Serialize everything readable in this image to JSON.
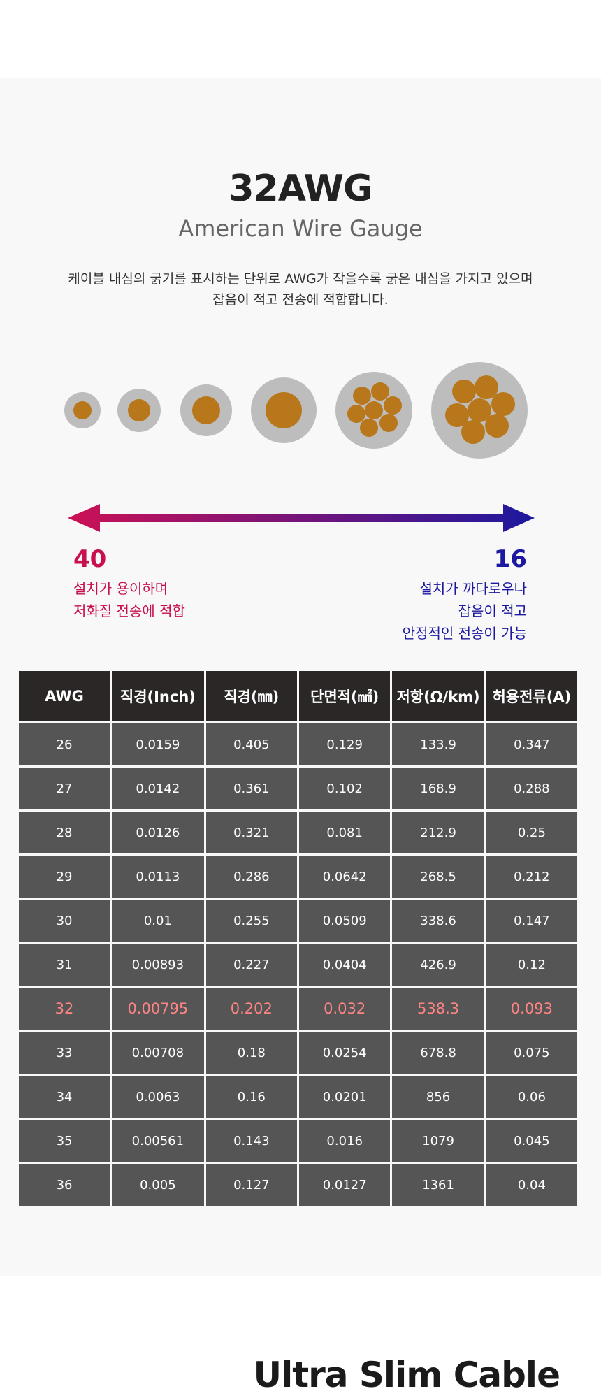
{
  "header": {
    "title": "32AWG",
    "subtitle": "American Wire Gauge",
    "description": [
      "케이블 내심의 굵기를 표시하는 단위로 AWG가 작을수록 굵은 내심을 가지고 있으며",
      "잡음이 적고 전송에 적합합니다."
    ]
  },
  "scale": {
    "left": {
      "label": "40",
      "notes": [
        "설치가 용이하며",
        "저화질 전송에 적합"
      ]
    },
    "right": {
      "label": "16",
      "notes": [
        "설치가 까다로우나",
        "잡음이 적고",
        "안정적인 전송이 가능"
      ]
    }
  },
  "table": {
    "columns": [
      "AWG",
      "직경(Inch)",
      "직경(㎜)",
      "단면적(㎟)",
      "저항(Ω/km)",
      "허용전류(A)"
    ],
    "highlighted": "32",
    "rows": [
      [
        "26",
        "0.0159",
        "0.405",
        "0.129",
        "133.9",
        "0.347"
      ],
      [
        "27",
        "0.0142",
        "0.361",
        "0.102",
        "168.9",
        "0.288"
      ],
      [
        "28",
        "0.0126",
        "0.321",
        "0.081",
        "212.9",
        "0.25"
      ],
      [
        "29",
        "0.0113",
        "0.286",
        "0.0642",
        "268.5",
        "0.212"
      ],
      [
        "30",
        "0.01",
        "0.255",
        "0.0509",
        "338.6",
        "0.147"
      ],
      [
        "31",
        "0.00893",
        "0.227",
        "0.0404",
        "426.9",
        "0.12"
      ],
      [
        "32",
        "0.00795",
        "0.202",
        "0.032",
        "538.3",
        "0.093"
      ],
      [
        "33",
        "0.00708",
        "0.18",
        "0.0254",
        "678.8",
        "0.075"
      ],
      [
        "34",
        "0.0063",
        "0.16",
        "0.0201",
        "856",
        "0.06"
      ],
      [
        "35",
        "0.00561",
        "0.143",
        "0.016",
        "1079",
        "0.045"
      ],
      [
        "36",
        "0.005",
        "0.127",
        "0.0127",
        "1361",
        "0.04"
      ]
    ]
  },
  "footer": {
    "text": "Ultra Slim Cable"
  }
}
